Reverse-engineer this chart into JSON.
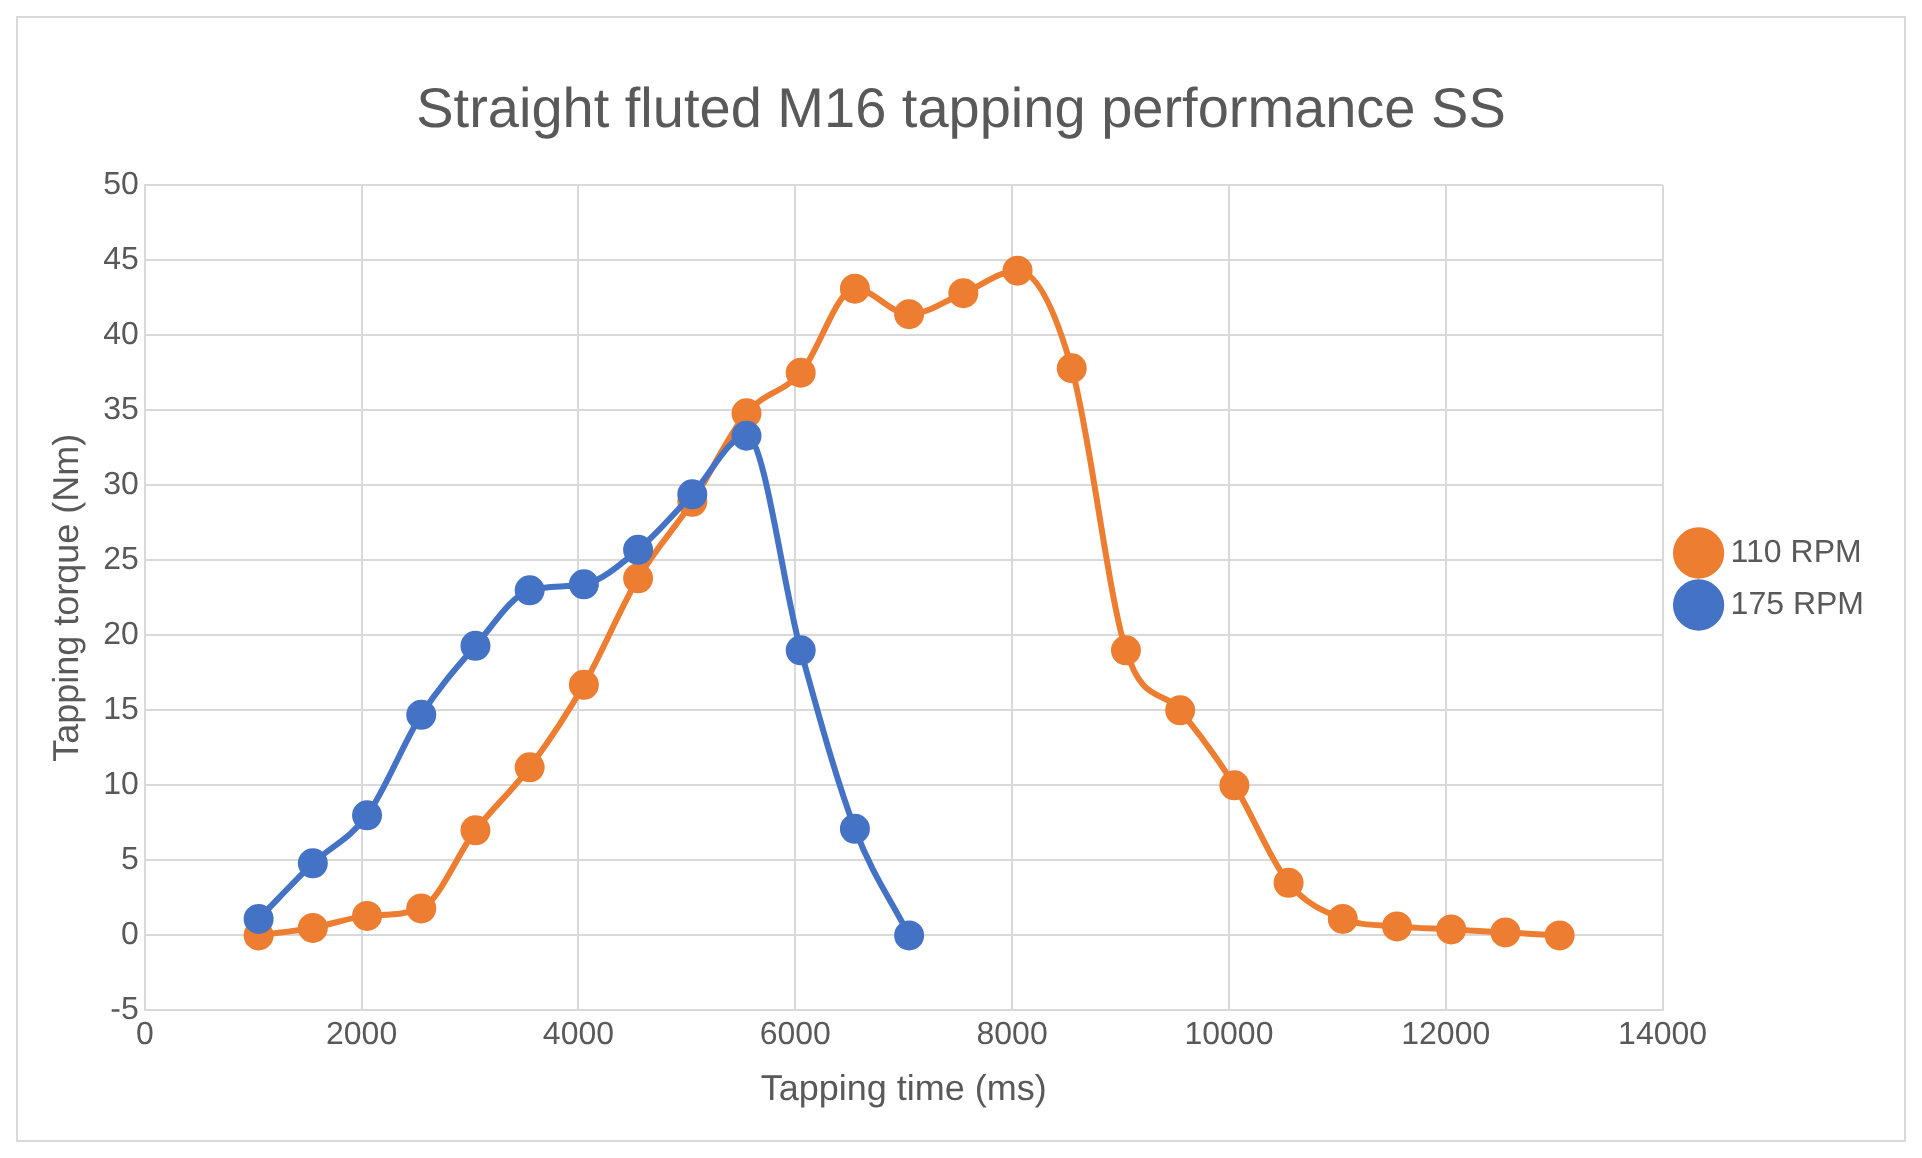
{
  "chart_data": {
    "type": "line",
    "title": "Straight fluted M16 tapping performance SS",
    "xlabel": "Tapping time (ms)",
    "ylabel": "Tapping torque (Nm)",
    "xlim": [
      0,
      14000
    ],
    "xticks": [
      0,
      2000,
      4000,
      6000,
      8000,
      10000,
      12000,
      14000
    ],
    "ylim": [
      -5,
      50
    ],
    "yticks": [
      -5,
      0,
      5,
      10,
      15,
      20,
      25,
      30,
      35,
      40,
      45,
      50
    ],
    "grid": true,
    "legend": "right",
    "marker": "circle",
    "line_style": "solid",
    "series": [
      {
        "name": "110 RPM",
        "color": "#ed7d31",
        "x": [
          1050,
          1550,
          2050,
          2550,
          3050,
          3550,
          4050,
          4550,
          5050,
          5550,
          6050,
          6550,
          7050,
          7550,
          8050,
          8550,
          9050,
          9550,
          10050,
          10550,
          11050,
          11550,
          12050,
          12550,
          13050
        ],
        "values": [
          0,
          0.5,
          1.3,
          1.8,
          7,
          11.2,
          16.7,
          23.8,
          28.9,
          34.8,
          37.5,
          43.1,
          41.4,
          42.8,
          44.3,
          37.8,
          19,
          15,
          10,
          3.5,
          1.1,
          0.6,
          0.4,
          0.2,
          0
        ]
      },
      {
        "name": "175 RPM",
        "color": "#4472c4",
        "x": [
          1050,
          1550,
          2050,
          2550,
          3050,
          3550,
          4050,
          4550,
          5050,
          5550,
          6050,
          6550,
          7050
        ],
        "values": [
          1.1,
          4.8,
          8,
          14.7,
          19.3,
          23,
          23.4,
          25.7,
          29.4,
          33.3,
          19,
          7.1,
          0
        ]
      }
    ]
  }
}
